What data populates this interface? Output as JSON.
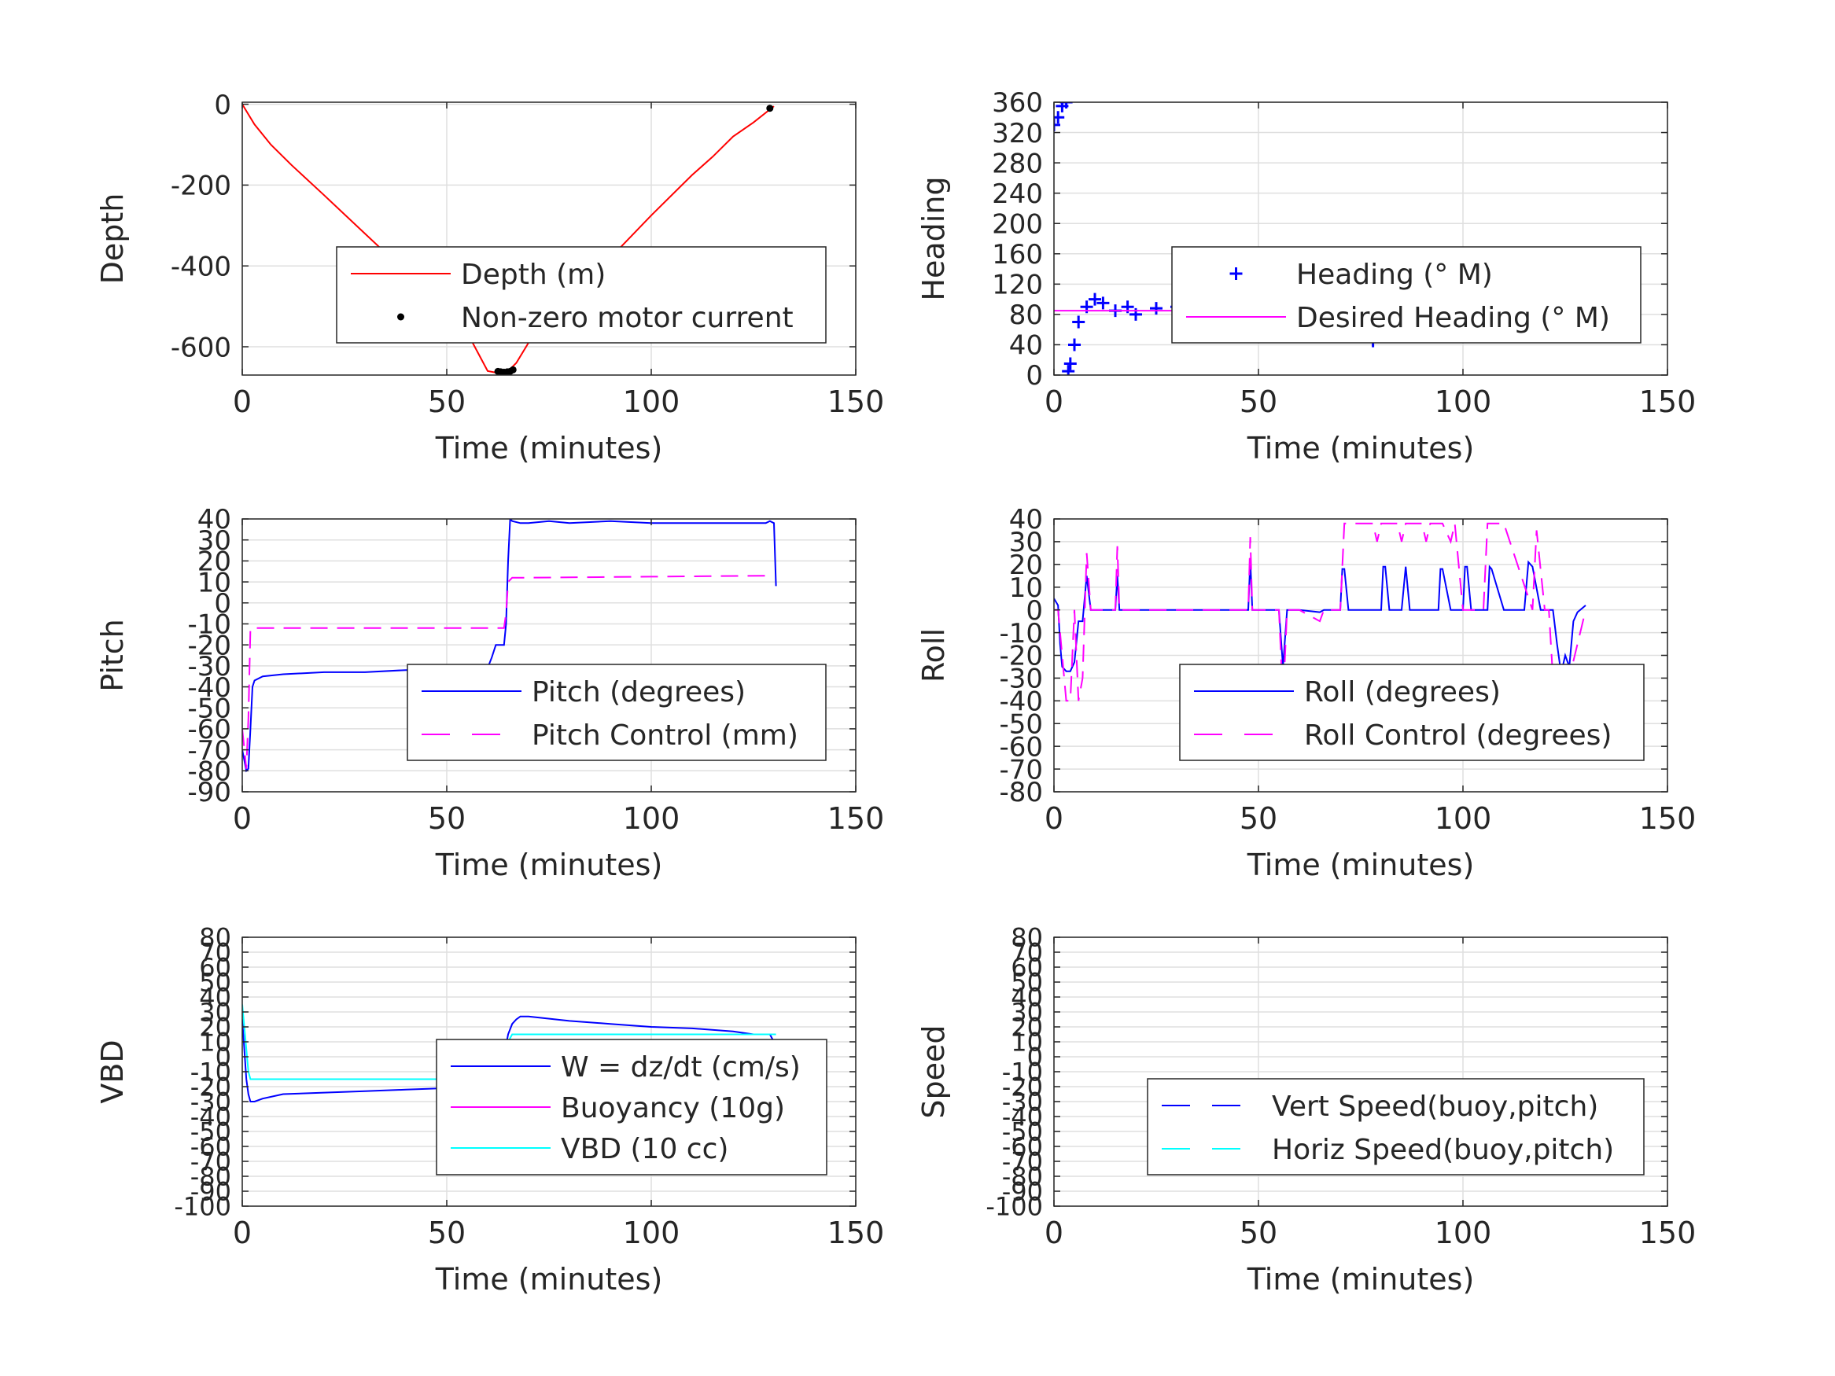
{
  "chart_data": [
    {
      "id": "depth",
      "type": "line",
      "xlabel": "Time (minutes)",
      "ylabel": "Depth",
      "xlim": [
        0,
        150
      ],
      "ylim": [
        -670,
        5
      ],
      "xticks": [
        0,
        50,
        100,
        150
      ],
      "yticks": [
        0,
        -200,
        -400,
        -600
      ],
      "grid": true,
      "legend_position": "center-right",
      "series": [
        {
          "name": "Depth (m)",
          "style": "line",
          "color": "#ff0000",
          "x": [
            0,
            3,
            7,
            12,
            20,
            30,
            40,
            50,
            55,
            60,
            62,
            65,
            67,
            70,
            80,
            90,
            100,
            110,
            115,
            120,
            125,
            130
          ],
          "y": [
            0,
            -50,
            -100,
            -150,
            -225,
            -320,
            -415,
            -515,
            -565,
            -660,
            -664,
            -660,
            -640,
            -590,
            -485,
            -380,
            -275,
            -175,
            -130,
            -80,
            -45,
            -5
          ]
        },
        {
          "name": "Non-zero motor current",
          "style": "dots",
          "color": "#000000",
          "x": [
            62.5,
            63.2,
            64.0,
            64.8,
            65.5,
            66.2,
            129
          ],
          "y": [
            -661,
            -662,
            -663,
            -662,
            -661,
            -657,
            -10
          ]
        }
      ]
    },
    {
      "id": "heading",
      "type": "scatter",
      "xlabel": "Time (minutes)",
      "ylabel": "Heading",
      "xlim": [
        0,
        150
      ],
      "ylim": [
        0,
        360
      ],
      "xticks": [
        0,
        50,
        100,
        150
      ],
      "yticks": [
        0,
        40,
        80,
        120,
        160,
        200,
        240,
        280,
        320,
        360
      ],
      "grid": true,
      "legend_position": "center-right",
      "series": [
        {
          "name": "Heading (° M)",
          "style": "plus",
          "color": "#0000ff",
          "x": [
            0,
            1,
            2,
            3,
            3.5,
            4,
            5,
            6,
            8,
            10,
            12,
            15,
            18,
            20,
            25,
            30,
            35,
            40,
            45,
            50,
            52,
            54,
            56,
            58,
            60,
            62,
            65,
            68,
            70,
            72,
            75,
            77,
            78,
            80,
            82,
            85,
            88,
            90,
            92,
            95,
            100,
            103,
            105,
            106,
            108,
            110,
            113,
            116,
            118,
            120,
            122,
            124,
            126,
            128,
            130,
            130.5
          ],
          "y": [
            330,
            340,
            355,
            360,
            5,
            15,
            40,
            70,
            90,
            100,
            95,
            85,
            90,
            80,
            88,
            90,
            85,
            78,
            90,
            95,
            85,
            70,
            60,
            75,
            90,
            80,
            85,
            65,
            75,
            90,
            75,
            55,
            45,
            65,
            90,
            95,
            80,
            70,
            90,
            85,
            95,
            75,
            60,
            55,
            70,
            85,
            90,
            80,
            100,
            110,
            120,
            100,
            85,
            90,
            120,
            110
          ]
        },
        {
          "name": "Desired Heading (° M)",
          "style": "line",
          "color": "#ff00ff",
          "x": [
            0,
            130
          ],
          "y": [
            85,
            85
          ]
        }
      ]
    },
    {
      "id": "pitch",
      "type": "line",
      "xlabel": "Time (minutes)",
      "ylabel": "Pitch",
      "xlim": [
        0,
        150
      ],
      "ylim": [
        -90,
        40
      ],
      "xticks": [
        0,
        50,
        100,
        150
      ],
      "yticks": [
        40,
        30,
        20,
        10,
        0,
        -10,
        -20,
        -30,
        -40,
        -50,
        -60,
        -70,
        -80,
        -90
      ],
      "grid": true,
      "legend_position": "center-right",
      "series": [
        {
          "name": "Pitch (degrees)",
          "style": "line",
          "color": "#0000ff",
          "x": [
            0,
            1,
            1.5,
            2,
            2.5,
            3,
            5,
            10,
            20,
            30,
            40,
            50,
            55,
            58,
            59,
            60,
            61,
            62,
            64,
            64.5,
            65,
            65.5,
            66,
            68,
            70,
            75,
            80,
            90,
            100,
            110,
            120,
            128,
            129,
            130,
            130.5
          ],
          "y": [
            -70,
            -80,
            -79,
            -60,
            -40,
            -37,
            -35,
            -34,
            -33,
            -33,
            -32,
            -32,
            -31,
            -32,
            -31,
            -31,
            -26,
            -20,
            -20,
            -10,
            20,
            40,
            39,
            38,
            38,
            39,
            38,
            39,
            38,
            38,
            38,
            38,
            39,
            38,
            8
          ]
        },
        {
          "name": "Pitch Control (mm)",
          "style": "dashed",
          "color": "#ff00ff",
          "x": [
            0,
            1,
            1.5,
            2,
            3,
            10,
            30,
            50,
            60,
            64,
            64.5,
            65,
            66,
            70,
            100,
            130
          ],
          "y": [
            -60,
            -79,
            -55,
            -12,
            -12,
            -12,
            -12,
            -12,
            -12,
            -12,
            -5,
            10,
            12,
            12,
            12.5,
            13
          ]
        }
      ]
    },
    {
      "id": "roll",
      "type": "line",
      "xlabel": "Time (minutes)",
      "ylabel": "Roll",
      "xlim": [
        0,
        150
      ],
      "ylim": [
        -80,
        40
      ],
      "xticks": [
        0,
        50,
        100,
        150
      ],
      "yticks": [
        40,
        30,
        20,
        10,
        0,
        -10,
        -20,
        -30,
        -40,
        -50,
        -60,
        -70,
        -80
      ],
      "grid": true,
      "legend_position": "center-right",
      "series": [
        {
          "name": "Roll (degrees)",
          "style": "line",
          "color": "#0000ff",
          "x": [
            0,
            1,
            1.5,
            2,
            3,
            4,
            5,
            6,
            7,
            8,
            9,
            10,
            15,
            15.5,
            16,
            20,
            40,
            47.5,
            48,
            48.5,
            50,
            55,
            56,
            57,
            60,
            65,
            66,
            70,
            70.5,
            71,
            72,
            80,
            80.5,
            81,
            82,
            85,
            86,
            87,
            90,
            94,
            94.5,
            95,
            97,
            100,
            100.5,
            101,
            102,
            106,
            106.5,
            107,
            110,
            115,
            116,
            117,
            119,
            120,
            122,
            123,
            124,
            125,
            126,
            127,
            128,
            130
          ],
          "y": [
            5,
            2,
            -15,
            -25,
            -27,
            -27,
            -23,
            -5,
            -5,
            15,
            0,
            0,
            0,
            15,
            0,
            0,
            0,
            0,
            22,
            0,
            0,
            0,
            -25,
            0,
            0,
            -1,
            0,
            0,
            18,
            18,
            0,
            0,
            19,
            19,
            0,
            0,
            19,
            0,
            0,
            0,
            18,
            18,
            0,
            0,
            19,
            19,
            0,
            0,
            19,
            18,
            0,
            0,
            21,
            19,
            0,
            0,
            0,
            -15,
            -28,
            -20,
            -25,
            -5,
            -1,
            2
          ]
        },
        {
          "name": "Roll Control (degrees)",
          "style": "dashed",
          "color": "#ff00ff",
          "x": [
            0,
            1,
            2,
            3,
            4,
            5,
            6,
            7,
            8,
            9,
            10,
            15,
            15.5,
            16,
            20,
            47.5,
            48,
            48.5,
            55,
            56,
            57,
            60,
            65,
            66,
            70,
            71,
            72,
            78,
            79,
            80,
            84,
            85,
            86,
            90,
            91,
            92,
            95,
            97,
            98,
            100,
            105,
            106,
            110,
            117,
            118,
            120,
            121,
            122,
            123,
            124,
            125,
            126,
            130
          ],
          "y": [
            0,
            0,
            -20,
            -40,
            -40,
            0,
            -40,
            -30,
            25,
            0,
            0,
            0,
            28,
            0,
            0,
            0,
            32,
            0,
            0,
            -40,
            0,
            0,
            -5,
            0,
            0,
            38,
            38,
            38,
            30,
            38,
            38,
            30,
            38,
            38,
            30,
            38,
            38,
            30,
            38,
            0,
            0,
            38,
            38,
            0,
            35,
            0,
            0,
            -30,
            -40,
            -30,
            -40,
            -30,
            0
          ]
        }
      ]
    },
    {
      "id": "vbd",
      "type": "line",
      "xlabel": "Time (minutes)",
      "ylabel": "VBD",
      "xlim": [
        0,
        150
      ],
      "ylim": [
        -100,
        80
      ],
      "xticks": [
        0,
        50,
        100,
        150
      ],
      "yticks": [
        80,
        70,
        60,
        50,
        40,
        30,
        20,
        10,
        0,
        -10,
        -20,
        -30,
        -40,
        -50,
        -60,
        -70,
        -80,
        -90,
        -100
      ],
      "grid": true,
      "legend_position": "center-right",
      "series": [
        {
          "name": "W = dz/dt (cm/s)",
          "style": "line",
          "color": "#0000ff",
          "x": [
            0,
            0.5,
            1,
            1.5,
            2,
            3,
            5,
            10,
            20,
            30,
            40,
            50,
            55,
            59,
            60,
            61,
            63,
            64,
            65,
            66,
            67,
            68,
            70,
            80,
            90,
            100,
            110,
            120,
            125,
            128,
            129,
            130,
            130.5
          ],
          "y": [
            25,
            5,
            -15,
            -25,
            -30,
            -30,
            -28,
            -25,
            -24,
            -23,
            -22,
            -21,
            -20,
            -20,
            0,
            0,
            0,
            0,
            15,
            22,
            25,
            27,
            27,
            24,
            22,
            20,
            19,
            17,
            15,
            15,
            15,
            10,
            5
          ]
        },
        {
          "name": "Buoyancy (10g)",
          "style": "line",
          "color": "#ff00ff",
          "x": [],
          "y": []
        },
        {
          "name": "VBD (10 cc)",
          "style": "line",
          "color": "#00ffff",
          "x": [
            0,
            0.5,
            1,
            1.5,
            2,
            3,
            10,
            30,
            50,
            60,
            62,
            63,
            64,
            65,
            66,
            67,
            80,
            100,
            120,
            128,
            130,
            130.5
          ],
          "y": [
            35,
            20,
            5,
            -10,
            -15,
            -15,
            -15,
            -15,
            -15,
            -15,
            -15,
            -10,
            -5,
            10,
            15,
            15,
            15,
            15,
            15,
            15,
            15,
            15
          ]
        }
      ]
    },
    {
      "id": "speed",
      "type": "line",
      "xlabel": "Time (minutes)",
      "ylabel": "Speed",
      "xlim": [
        0,
        150
      ],
      "ylim": [
        -100,
        80
      ],
      "xticks": [
        0,
        50,
        100,
        150
      ],
      "yticks": [
        80,
        70,
        60,
        50,
        40,
        30,
        20,
        10,
        0,
        -10,
        -20,
        -30,
        -40,
        -50,
        -60,
        -70,
        -80,
        -90,
        -100
      ],
      "grid": true,
      "legend_position": "bottom-right",
      "series": [
        {
          "name": "Vert Speed(buoy,pitch)",
          "style": "dashed",
          "color": "#0000ff",
          "x": [],
          "y": []
        },
        {
          "name": "Horiz Speed(buoy,pitch)",
          "style": "dashed",
          "color": "#00ffff",
          "x": [],
          "y": []
        }
      ]
    }
  ]
}
